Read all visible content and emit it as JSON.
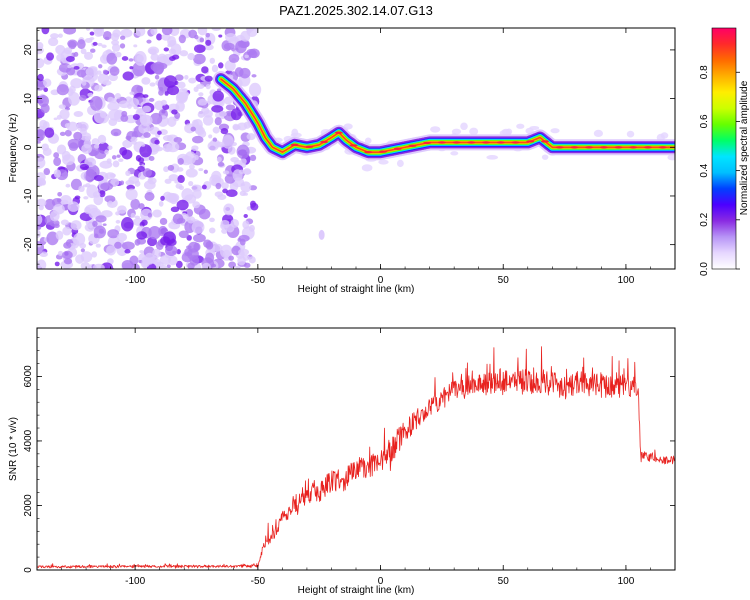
{
  "title": "PAZ1.2025.302.14.07.G13",
  "chart_data": [
    {
      "type": "heatmap",
      "name": "spectrogram",
      "xlabel": "Height of straight line (km)",
      "ylabel": "Frequency (Hz)",
      "xlim": [
        -140,
        120
      ],
      "ylim": [
        -25,
        24.5
      ],
      "xticks": [
        -100,
        -50,
        0,
        50,
        100
      ],
      "xtick_labels": [
        "-100",
        "-50",
        "0",
        "50",
        "100"
      ],
      "yticks": [
        -20,
        -10,
        0,
        10,
        20
      ],
      "ytick_labels": [
        "-20",
        "-10",
        "0",
        "10",
        "20"
      ],
      "colorbar": {
        "label": "Normalized spectral amplitude",
        "range": [
          0,
          0.98
        ],
        "ticks": [
          0.0,
          0.2,
          0.4,
          0.6,
          0.8
        ],
        "tick_labels": [
          "0.0",
          "0.2",
          "0.4",
          "0.6",
          "0.8"
        ],
        "colormap": [
          "#ffffff",
          "#e6d7ff",
          "#b794f6",
          "#8a2be2",
          "#4b00ff",
          "#0040ff",
          "#00bfff",
          "#00e5ff",
          "#00ff66",
          "#66ff00",
          "#ccff00",
          "#ffee00",
          "#ffb000",
          "#ff6a00",
          "#ff2a2a",
          "#ff0066"
        ]
      },
      "ridge": {
        "description_points_x": [
          -65,
          -60,
          -55,
          -50,
          -47,
          -44,
          -40,
          -35,
          -30,
          -25,
          -20,
          -17,
          -14,
          -10,
          -5,
          0,
          10,
          20,
          30,
          40,
          50,
          60,
          65,
          70,
          80,
          90,
          100,
          110,
          120
        ],
        "description_points_y": [
          14,
          12,
          9,
          5,
          2,
          0,
          -1,
          0.5,
          0,
          0.5,
          2,
          3,
          1.5,
          0,
          -1,
          -1,
          0,
          1,
          1,
          1,
          1,
          1,
          2,
          0,
          0,
          0,
          0,
          0,
          0
        ],
        "peak_amplitude": 0.95
      },
      "noise_region_x": [
        -140,
        -53
      ]
    },
    {
      "type": "line",
      "name": "snr",
      "xlabel": "Height of straight line (km)",
      "ylabel": "SNR (10 * v/v)",
      "xlim": [
        -140,
        120
      ],
      "ylim": [
        0,
        7500
      ],
      "xticks": [
        -100,
        -50,
        0,
        50,
        100
      ],
      "xtick_labels": [
        "-100",
        "-50",
        "0",
        "50",
        "100"
      ],
      "yticks": [
        0,
        2000,
        4000,
        6000
      ],
      "ytick_labels": [
        "0",
        "2000",
        "4000",
        "6000"
      ],
      "color": "#e8221f",
      "envelope_x": [
        -140,
        -50,
        -47,
        -45,
        -40,
        -35,
        -30,
        -25,
        -20,
        -15,
        -10,
        -5,
        0,
        5,
        10,
        15,
        20,
        25,
        30,
        35,
        40,
        45,
        50,
        55,
        60,
        65,
        70,
        75,
        80,
        85,
        90,
        95,
        100,
        105,
        106,
        110,
        115,
        120
      ],
      "envelope_y": [
        100,
        120,
        900,
        900,
        1600,
        2000,
        2300,
        2400,
        2800,
        2800,
        3100,
        3200,
        3300,
        3800,
        4300,
        4700,
        5000,
        5300,
        5600,
        5700,
        5800,
        5800,
        5900,
        5900,
        5800,
        5900,
        5800,
        5700,
        5800,
        5800,
        5700,
        5700,
        5700,
        5600,
        3500,
        3500,
        3400,
        3400
      ],
      "noise_amplitude": [
        60,
        60,
        300,
        300,
        350,
        400,
        450,
        500,
        600,
        600,
        600,
        600,
        600,
        700,
        600,
        500,
        500,
        500,
        500,
        500,
        500,
        600,
        650,
        650,
        700,
        700,
        700,
        700,
        600,
        600,
        600,
        600,
        600,
        600,
        250,
        250,
        200,
        200
      ]
    }
  ]
}
